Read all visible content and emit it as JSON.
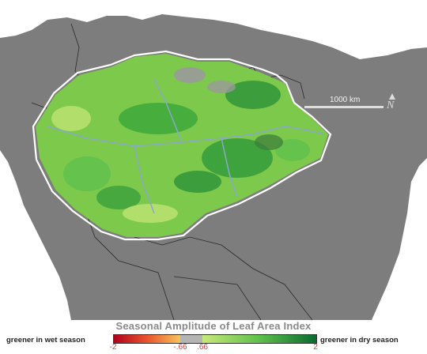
{
  "scale_bar": {
    "label": "1000 km"
  },
  "north_arrow": {
    "letter": "N"
  },
  "legend": {
    "title": "Seasonal Amplitude of Leaf Area Index",
    "left_label": "greener in wet season",
    "right_label": "greener in dry season",
    "ticks": [
      "-2",
      "-.66",
      ".66",
      "2"
    ],
    "tick_values": [
      -2,
      -0.66,
      0.66,
      2
    ],
    "range": [
      -2,
      2
    ],
    "colors": {
      "wet_dark": "#b0001e",
      "wet_mid": "#e8542c",
      "wet_light": "#f5c45a",
      "neutral": "#b4b4b4",
      "dry_light": "#c8e87a",
      "dry_mid": "#5fc04c",
      "dry_dark": "#0a6a30"
    }
  },
  "map": {
    "land_color": "#7d7d7d",
    "ocean_color": "#ffffff",
    "river_color": "#8aa8c8",
    "boundary_color": "#ffffff"
  }
}
